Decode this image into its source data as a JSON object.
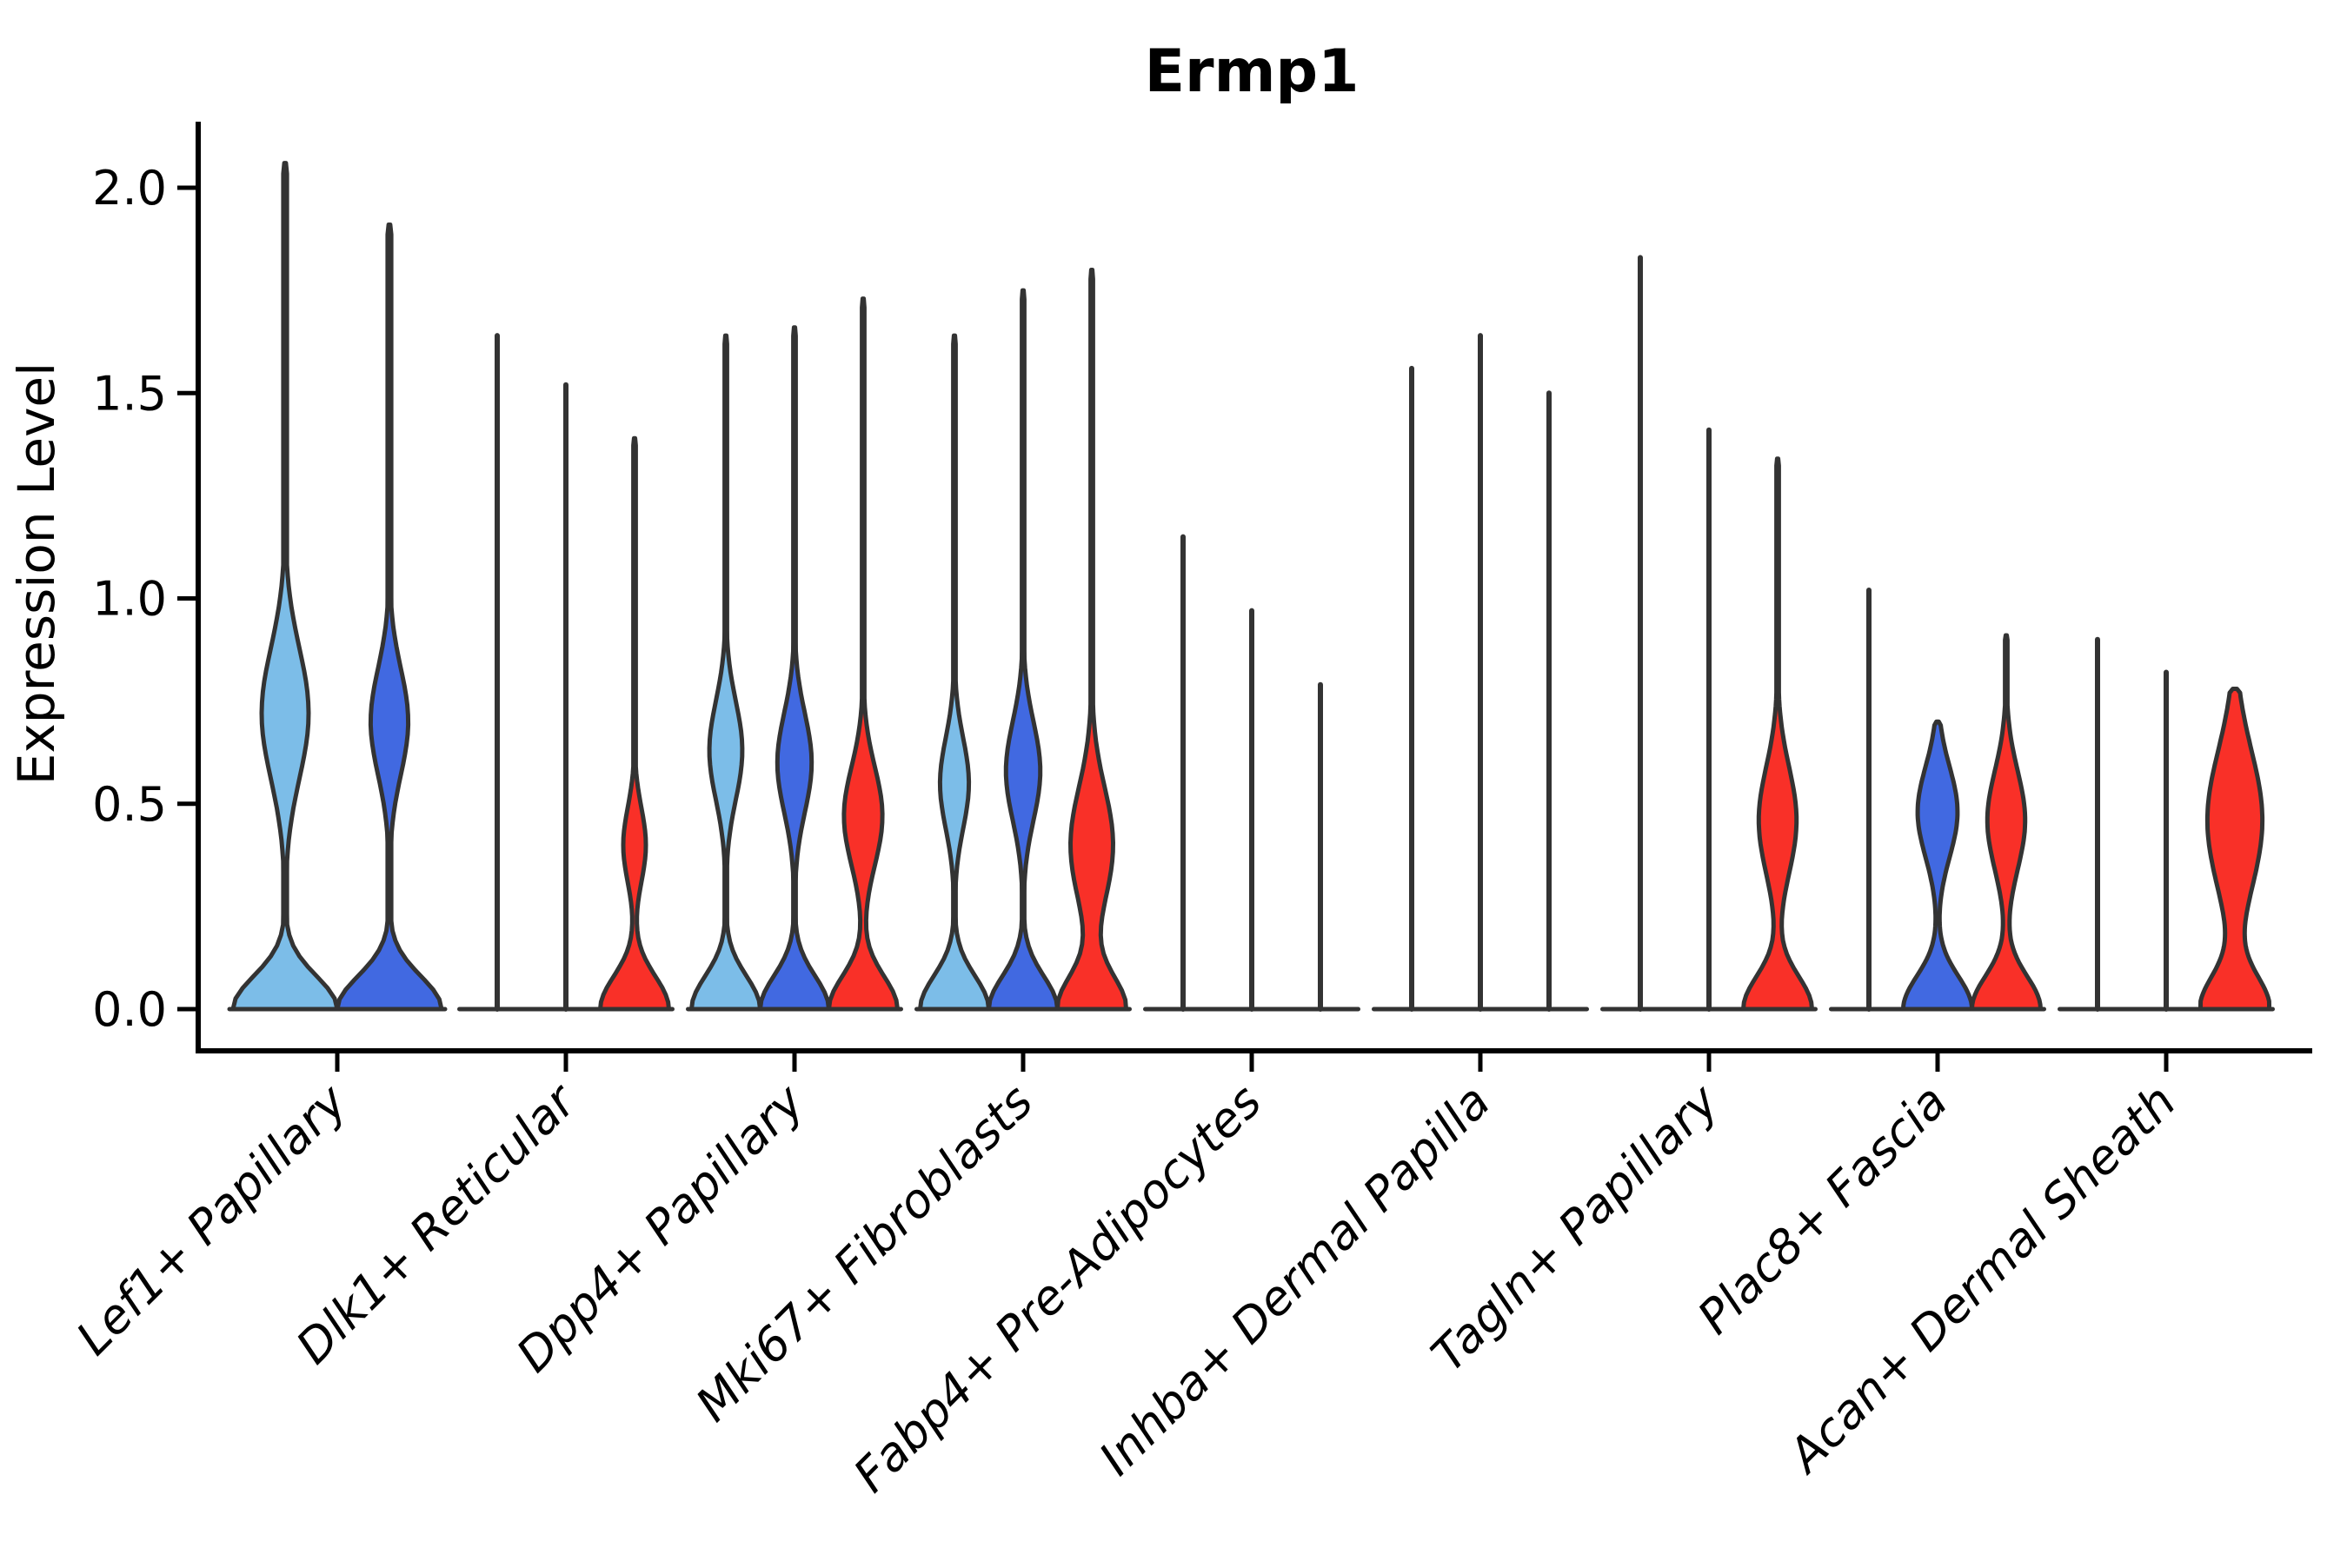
{
  "chart_data": {
    "type": "violin",
    "title": "Ermp1",
    "ylabel": "Expression Level",
    "ylim": [
      -0.1,
      2.16
    ],
    "yticks": [
      "0.0",
      "0.5",
      "1.0",
      "1.5",
      "2.0"
    ],
    "ytick_values": [
      0.0,
      0.5,
      1.0,
      1.5,
      2.0
    ],
    "grid": false,
    "legend_position": "none",
    "colors": {
      "light_blue": "#7CBDE8",
      "blue": "#4169E1",
      "red": "#F93028",
      "outline": "#333333",
      "axis": "#000000"
    },
    "categories": [
      "Lef1+ Papillary",
      "Dlk1+ Reticular",
      "Dpp4+ Papillary",
      "Mki67+ Fibroblasts",
      "Fabp4+ Pre-Adipocytes",
      "Inhba+ Dermal Papilla",
      "Tagln+ Papillary",
      "Plac8+ Fascia",
      "Acan+ Dermal Sheath"
    ],
    "groups": [
      {
        "category": "Lef1+ Papillary",
        "violins": [
          {
            "color": "light_blue",
            "max": 2.06,
            "body": true,
            "bulge": {
              "center": 0.72,
              "sigma": 0.16,
              "amp": 0.45
            }
          },
          {
            "color": "blue",
            "max": 1.91,
            "body": true,
            "bulge": {
              "center": 0.7,
              "sigma": 0.13,
              "amp": 0.36
            }
          }
        ]
      },
      {
        "category": "Dlk1+ Reticular",
        "violins": [
          {
            "color": "light_blue",
            "max": 1.64,
            "body": false
          },
          {
            "color": "blue",
            "max": 1.52,
            "body": false
          },
          {
            "color": "red",
            "max": 1.39,
            "body": true,
            "bulge": {
              "center": 0.4,
              "sigma": 0.09,
              "amp": 0.33
            }
          }
        ]
      },
      {
        "category": "Dpp4+ Papillary",
        "violins": [
          {
            "color": "light_blue",
            "max": 1.64,
            "body": true,
            "bulge": {
              "center": 0.63,
              "sigma": 0.12,
              "amp": 0.48
            }
          },
          {
            "color": "blue",
            "max": 1.66,
            "body": true,
            "bulge": {
              "center": 0.6,
              "sigma": 0.12,
              "amp": 0.5
            }
          },
          {
            "color": "red",
            "max": 1.73,
            "body": true,
            "bulge": {
              "center": 0.47,
              "sigma": 0.12,
              "amp": 0.56
            }
          }
        ]
      },
      {
        "category": "Mki67+ Fibroblasts",
        "violins": [
          {
            "color": "light_blue",
            "max": 1.64,
            "body": true,
            "bulge": {
              "center": 0.55,
              "sigma": 0.11,
              "amp": 0.42
            }
          },
          {
            "color": "blue",
            "max": 1.75,
            "body": true,
            "bulge": {
              "center": 0.58,
              "sigma": 0.12,
              "amp": 0.5
            }
          },
          {
            "color": "red",
            "max": 1.8,
            "body": true,
            "bulge": {
              "center": 0.4,
              "sigma": 0.14,
              "amp": 0.62
            }
          }
        ]
      },
      {
        "category": "Fabp4+ Pre-Adipocytes",
        "violins": [
          {
            "color": "light_blue",
            "max": 1.15,
            "body": false
          },
          {
            "color": "blue",
            "max": 0.97,
            "body": false
          },
          {
            "color": "red",
            "max": 0.79,
            "body": false
          }
        ]
      },
      {
        "category": "Inhba+ Dermal Papilla",
        "violins": [
          {
            "color": "light_blue",
            "max": 1.56,
            "body": false
          },
          {
            "color": "blue",
            "max": 1.64,
            "body": false
          },
          {
            "color": "red",
            "max": 1.5,
            "body": false
          }
        ]
      },
      {
        "category": "Tagln+ Papillary",
        "violins": [
          {
            "color": "light_blue",
            "max": 1.83,
            "body": false
          },
          {
            "color": "blue",
            "max": 1.41,
            "body": false
          },
          {
            "color": "red",
            "max": 1.34,
            "body": true,
            "bulge": {
              "center": 0.46,
              "sigma": 0.13,
              "amp": 0.55
            }
          }
        ]
      },
      {
        "category": "Plac8+ Fascia",
        "violins": [
          {
            "color": "light_blue",
            "max": 1.02,
            "body": false
          },
          {
            "color": "blue",
            "max": 0.7,
            "body": true,
            "bulge": {
              "center": 0.48,
              "sigma": 0.11,
              "amp": 0.58
            }
          },
          {
            "color": "red",
            "max": 0.91,
            "body": true,
            "bulge": {
              "center": 0.46,
              "sigma": 0.12,
              "amp": 0.55
            }
          }
        ]
      },
      {
        "category": "Acan+ Dermal Sheath",
        "violins": [
          {
            "color": "light_blue",
            "max": 0.9,
            "body": false
          },
          {
            "color": "blue",
            "max": 0.82,
            "body": false
          },
          {
            "color": "red",
            "max": 0.78,
            "body": true,
            "bulge": {
              "center": 0.46,
              "sigma": 0.17,
              "amp": 0.8
            }
          }
        ]
      }
    ]
  }
}
